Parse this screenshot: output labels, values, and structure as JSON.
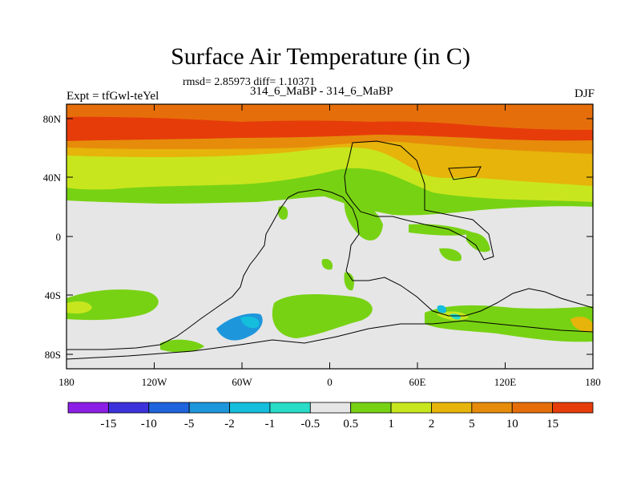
{
  "title": "Surface Air Temperature (in C)",
  "stats": "rmsd= 2.85973 diff= 1.10371",
  "runs": "314_6_MaBP - 314_6_MaBP",
  "experiment": "Expt = tfGwl-teYel",
  "season": "DJF",
  "lat_ticks": [
    "80N",
    "40N",
    "0",
    "40S",
    "80S"
  ],
  "lon_ticks": [
    "180",
    "120W",
    "60W",
    "0",
    "60E",
    "120E",
    "180"
  ],
  "colorbar": {
    "colors": [
      "#8c1ee6",
      "#3c32dc",
      "#1e64dc",
      "#1e96dc",
      "#14bedc",
      "#28dcc8",
      "#e6e6e6",
      "#78d214",
      "#c8e61e",
      "#e6b40a",
      "#e68c0a",
      "#e66e0a",
      "#e63c0a"
    ],
    "labels": [
      "-15",
      "-10",
      "-5",
      "-2",
      "-1",
      "-0.5",
      "0.5",
      "1",
      "2",
      "5",
      "10",
      "15"
    ]
  }
}
